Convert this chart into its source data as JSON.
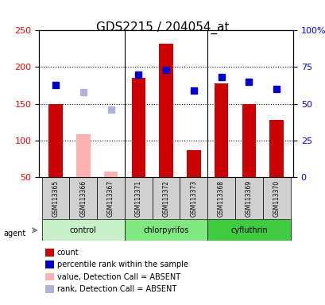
{
  "title": "GDS2215 / 204054_at",
  "samples": [
    "GSM113365",
    "GSM113366",
    "GSM113367",
    "GSM113371",
    "GSM113372",
    "GSM113373",
    "GSM113368",
    "GSM113369",
    "GSM113370"
  ],
  "bar_values": [
    150,
    108,
    57,
    185,
    232,
    87,
    178,
    150,
    128
  ],
  "bar_absent": [
    false,
    true,
    true,
    false,
    false,
    false,
    false,
    false,
    false
  ],
  "rank_values": [
    63,
    58,
    46,
    70,
    73,
    59,
    68,
    65,
    60
  ],
  "rank_absent": [
    false,
    true,
    true,
    false,
    false,
    false,
    false,
    false,
    false
  ],
  "groups": [
    {
      "label": "control",
      "samples": [
        "GSM113365",
        "GSM113366",
        "GSM113367"
      ],
      "color": "#c8f0c8"
    },
    {
      "label": "chlorpyrifos",
      "samples": [
        "GSM113371",
        "GSM113372",
        "GSM113373"
      ],
      "color": "#80e880"
    },
    {
      "label": "cyfluthrin",
      "samples": [
        "GSM113368",
        "GSM113369",
        "GSM113370"
      ],
      "color": "#40cc40"
    }
  ],
  "ylim_left": [
    50,
    250
  ],
  "ylim_right": [
    0,
    100
  ],
  "yticks_left": [
    50,
    100,
    150,
    200,
    250
  ],
  "yticks_right": [
    0,
    25,
    50,
    75,
    100
  ],
  "yticklabels_right": [
    "0",
    "25",
    "50",
    "75",
    "100%"
  ],
  "bar_color_present": "#cc0000",
  "bar_color_absent": "#ffb0b0",
  "rank_color_present": "#0000cc",
  "rank_color_absent": "#b0b0dd",
  "bar_width": 0.5,
  "grid_color": "#000000",
  "bg_color": "#e8e8e8",
  "legend_items": [
    {
      "color": "#cc0000",
      "label": "count"
    },
    {
      "color": "#0000cc",
      "label": "percentile rank within the sample"
    },
    {
      "color": "#ffb0b0",
      "label": "value, Detection Call = ABSENT"
    },
    {
      "color": "#b0b0dd",
      "label": "rank, Detection Call = ABSENT"
    }
  ]
}
